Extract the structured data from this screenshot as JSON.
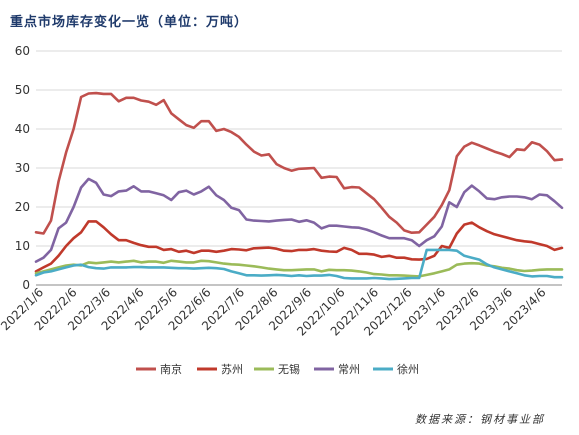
{
  "chart_data": {
    "type": "line",
    "title": "重点市场库存变化一览（单位：万吨）",
    "source": "数据来源：钢材事业部",
    "ylim": [
      0,
      60
    ],
    "yticks": [
      0,
      10,
      20,
      30,
      40,
      50,
      60
    ],
    "xticks": [
      "2022/1/6",
      "2022/2/6",
      "2022/3/6",
      "2022/4/6",
      "2022/5/6",
      "2022/6/6",
      "2022/7/6",
      "2022/8/6",
      "2022/9/6",
      "2022/10/6",
      "2022/11/6",
      "2022/12/6",
      "2023/1/6",
      "2023/2/6",
      "2023/3/6",
      "2023/4/6"
    ],
    "grid": true,
    "legend": "bottom",
    "series": [
      {
        "name": "南京",
        "color": "#c0504d",
        "values": [
          13.5,
          13.2,
          16.5,
          26.5,
          34,
          40,
          48.2,
          49.1,
          49.2,
          49.0,
          49.0,
          47.1,
          48.0,
          48.0,
          47.3,
          47.0,
          46.2,
          47.4,
          44.0,
          42.5,
          41.0,
          40.3,
          42.0,
          42.0,
          39.5,
          40.0,
          39.2,
          38.0,
          36.0,
          34.2,
          33.2,
          33.5,
          31.0,
          30.0,
          29.3,
          29.8,
          29.9,
          30.0,
          27.5,
          27.8,
          27.7,
          24.8,
          25.1,
          25.0,
          23.5,
          22.0,
          19.8,
          17.5,
          16.0,
          14.0,
          13.4,
          13.5,
          15.5,
          17.5,
          20.5,
          24.3,
          33.0,
          35.5,
          36.5,
          35.8,
          35.0,
          34.2,
          33.6,
          32.8,
          34.8,
          34.6,
          36.6,
          36.0,
          34.3,
          32.0,
          32.2
        ]
      },
      {
        "name": "苏州",
        "color": "#c0392b",
        "values": [
          3.5,
          4.5,
          5.5,
          7.5,
          10.0,
          12.0,
          13.5,
          16.3,
          16.3,
          14.8,
          13.0,
          11.5,
          11.5,
          10.8,
          10.2,
          9.8,
          9.8,
          9.0,
          9.2,
          8.5,
          8.8,
          8.2,
          8.8,
          8.8,
          8.5,
          8.8,
          9.2,
          9.1,
          8.9,
          9.4,
          9.5,
          9.6,
          9.3,
          8.8,
          8.7,
          9.0,
          9.0,
          9.2,
          8.8,
          8.6,
          8.5,
          9.5,
          9.0,
          8.0,
          8.0,
          7.8,
          7.2,
          7.5,
          7.0,
          7.0,
          6.6,
          6.5,
          6.7,
          7.5,
          10.0,
          9.5,
          13.2,
          15.5,
          16.0,
          14.8,
          13.8,
          13.0,
          12.5,
          12.0,
          11.5,
          11.2,
          11.0,
          10.5,
          10.0,
          9.0,
          9.5
        ]
      },
      {
        "name": "无锡",
        "color": "#9bbb59",
        "values": [
          3.0,
          3.5,
          4.0,
          4.5,
          5.0,
          5.2,
          5.0,
          5.8,
          5.6,
          5.8,
          6.0,
          5.8,
          6.0,
          6.2,
          5.8,
          6.0,
          6.0,
          5.7,
          6.2,
          6.0,
          5.8,
          5.8,
          6.2,
          6.1,
          5.8,
          5.5,
          5.3,
          5.2,
          5.0,
          4.8,
          4.5,
          4.2,
          4.0,
          3.8,
          3.8,
          3.9,
          4.0,
          4.0,
          3.5,
          3.9,
          3.8,
          3.8,
          3.7,
          3.5,
          3.2,
          2.8,
          2.7,
          2.5,
          2.5,
          2.4,
          2.3,
          2.2,
          2.6,
          3.0,
          3.5,
          4.0,
          5.2,
          5.5,
          5.6,
          5.5,
          5.0,
          4.8,
          4.4,
          4.2,
          3.8,
          3.6,
          3.7,
          3.9,
          4.0,
          4.0,
          4.0
        ]
      },
      {
        "name": "常州",
        "color": "#8064a2",
        "values": [
          6.0,
          7.0,
          9.0,
          14.5,
          16.0,
          20.0,
          25.0,
          27.2,
          26.2,
          23.2,
          22.8,
          24.0,
          24.2,
          25.3,
          24.0,
          24.0,
          23.5,
          23.0,
          21.8,
          23.8,
          24.2,
          23.2,
          24.0,
          25.2,
          23.0,
          21.8,
          19.8,
          19.2,
          16.8,
          16.5,
          16.4,
          16.3,
          16.5,
          16.7,
          16.8,
          16.2,
          16.6,
          16.0,
          14.5,
          15.2,
          15.2,
          15.0,
          14.8,
          14.7,
          14.2,
          13.5,
          12.7,
          12.0,
          12.0,
          12.0,
          11.5,
          10.0,
          11.5,
          12.5,
          15.0,
          21.2,
          20.0,
          23.8,
          25.5,
          24.0,
          22.2,
          22.0,
          22.5,
          22.7,
          22.7,
          22.5,
          22.0,
          23.2,
          23.0,
          21.5,
          19.8
        ]
      },
      {
        "name": "徐州",
        "color": "#4bacc6",
        "values": [
          2.5,
          3.2,
          3.5,
          4.0,
          4.5,
          5.0,
          5.2,
          4.6,
          4.3,
          4.2,
          4.5,
          4.5,
          4.5,
          4.6,
          4.6,
          4.5,
          4.5,
          4.5,
          4.4,
          4.3,
          4.3,
          4.2,
          4.3,
          4.4,
          4.3,
          4.1,
          3.5,
          3.0,
          2.5,
          2.5,
          2.4,
          2.5,
          2.6,
          2.5,
          2.3,
          2.5,
          2.3,
          2.4,
          2.4,
          2.6,
          2.3,
          1.8,
          1.7,
          1.7,
          1.7,
          1.8,
          1.7,
          1.5,
          1.6,
          1.7,
          1.8,
          1.8,
          9.0,
          9.0,
          9.0,
          9.0,
          8.8,
          7.5,
          7.0,
          6.5,
          5.3,
          4.5,
          4.0,
          3.5,
          3.0,
          2.5,
          2.2,
          2.3,
          2.3,
          2.0,
          2.0
        ]
      }
    ]
  }
}
